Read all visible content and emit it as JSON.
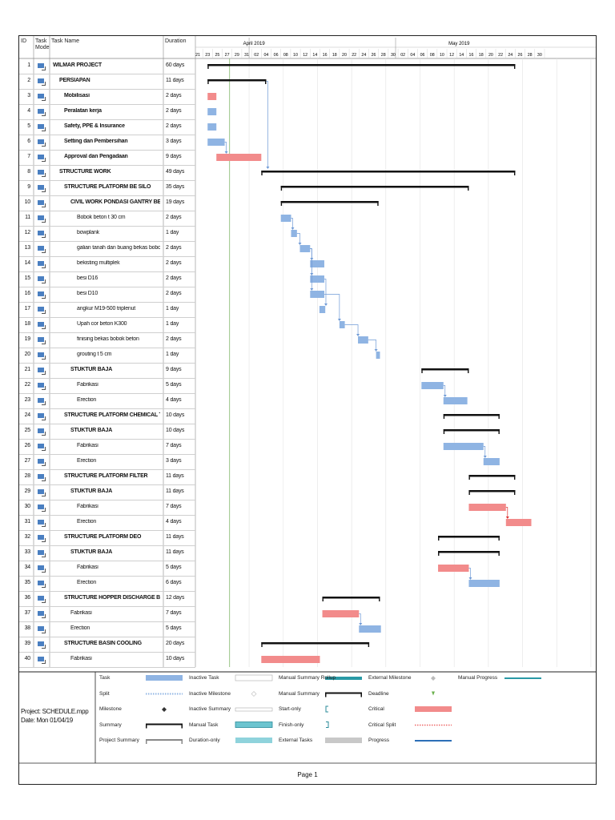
{
  "headers": {
    "id": "ID",
    "mode": "Task Mode",
    "name": "Task Name",
    "duration": "Duration",
    "month_labels": [
      "April 2019",
      "May 2019"
    ],
    "day_ticks": [
      "21",
      "23",
      "25",
      "27",
      "29",
      "31",
      "02",
      "04",
      "06",
      "08",
      "10",
      "12",
      "14",
      "16",
      "18",
      "20",
      "22",
      "24",
      "26",
      "28",
      "30",
      "02",
      "04",
      "06",
      "08",
      "10",
      "12",
      "14",
      "16",
      "18",
      "20",
      "22",
      "24",
      "26",
      "28",
      "30"
    ]
  },
  "tasks": [
    {
      "id": "1",
      "name": "WILMAR PROJECT",
      "duration": "60 days",
      "level": 0
    },
    {
      "id": "2",
      "name": "PERSIAPAN",
      "duration": "11 days",
      "level": 1
    },
    {
      "id": "3",
      "name": "Mobilisasi",
      "duration": "2 days",
      "level": 2
    },
    {
      "id": "4",
      "name": "Peralatan kerja",
      "duration": "2 days",
      "level": 2
    },
    {
      "id": "5",
      "name": "Safety, PPE & Insurance",
      "duration": "2 days",
      "level": 2
    },
    {
      "id": "6",
      "name": "Setting dan Pembersihan",
      "duration": "3 days",
      "level": 2
    },
    {
      "id": "7",
      "name": "Approval dan Pengadaan",
      "duration": "9 days",
      "level": 2
    },
    {
      "id": "8",
      "name": "STRUCTURE WORK",
      "duration": "49 days",
      "level": 1
    },
    {
      "id": "9",
      "name": "STRUCTURE PLATFORM BE SILO",
      "duration": "35 days",
      "level": 2
    },
    {
      "id": "10",
      "name": "CIVIL WORK PONDASI GANTRY BE SILO",
      "duration": "19 days",
      "level": 3
    },
    {
      "id": "11",
      "name": "Bobok beton t 30 cm",
      "duration": "2 days",
      "level": 4
    },
    {
      "id": "12",
      "name": "bowplank",
      "duration": "1 day",
      "level": 4
    },
    {
      "id": "13",
      "name": "galian tanah dan buang bekas bobok",
      "duration": "2 days",
      "level": 4
    },
    {
      "id": "14",
      "name": "bekisting multiplek",
      "duration": "2 days",
      "level": 4
    },
    {
      "id": "15",
      "name": "besi D16",
      "duration": "2 days",
      "level": 4
    },
    {
      "id": "16",
      "name": "besi D10",
      "duration": "2 days",
      "level": 4
    },
    {
      "id": "17",
      "name": "angkur M19-500 triplenut",
      "duration": "1 day",
      "level": 4
    },
    {
      "id": "18",
      "name": "Upah cor beton K300",
      "duration": "1 day",
      "level": 4
    },
    {
      "id": "19",
      "name": "finising bekas bobok beton",
      "duration": "2 days",
      "level": 4
    },
    {
      "id": "20",
      "name": "grouting t 5 cm",
      "duration": "1 day",
      "level": 4
    },
    {
      "id": "21",
      "name": "STUKTUR BAJA",
      "duration": "9 days",
      "level": 3
    },
    {
      "id": "22",
      "name": "Fabrikasi",
      "duration": "5 days",
      "level": 4
    },
    {
      "id": "23",
      "name": "Erection",
      "duration": "4 days",
      "level": 4
    },
    {
      "id": "24",
      "name": "STRUCTURE PLATFORM CHEMICAL TANK",
      "duration": "10 days",
      "level": 2
    },
    {
      "id": "25",
      "name": "STUKTUR BAJA",
      "duration": "10 days",
      "level": 3
    },
    {
      "id": "26",
      "name": "Fabrikasi",
      "duration": "7 days",
      "level": 4
    },
    {
      "id": "27",
      "name": "Erection",
      "duration": "3 days",
      "level": 4
    },
    {
      "id": "28",
      "name": "STRUCTURE PLATFORM FILTER",
      "duration": "11 days",
      "level": 2
    },
    {
      "id": "29",
      "name": "STUKTUR BAJA",
      "duration": "11 days",
      "level": 3
    },
    {
      "id": "30",
      "name": "Fabrikasi",
      "duration": "7 days",
      "level": 4
    },
    {
      "id": "31",
      "name": "Erection",
      "duration": "4 days",
      "level": 4
    },
    {
      "id": "32",
      "name": "STRUCTURE PLATFORM DEO",
      "duration": "11 days",
      "level": 2
    },
    {
      "id": "33",
      "name": "STUKTUR BAJA",
      "duration": "11 days",
      "level": 3
    },
    {
      "id": "34",
      "name": "Fabrikasi",
      "duration": "5 days",
      "level": 4
    },
    {
      "id": "35",
      "name": "Erection",
      "duration": "6 days",
      "level": 4
    },
    {
      "id": "36",
      "name": "STRUCTURE HOPPER DISCHARGE BE",
      "duration": "12 days",
      "level": 2
    },
    {
      "id": "37",
      "name": "Fabrikasi",
      "duration": "7 days",
      "level": 3
    },
    {
      "id": "38",
      "name": "Erection",
      "duration": "5 days",
      "level": 3
    },
    {
      "id": "39",
      "name": "STRUCTURE BASIN COOLING",
      "duration": "20 days",
      "level": 2
    },
    {
      "id": "40",
      "name": "Fabrikasi",
      "duration": "10 days",
      "level": 3
    }
  ],
  "chart_data": {
    "type": "gantt",
    "title": "WILMAR PROJECT",
    "x_unit": "days since Thu 21 Mar 2019 (start of timescale)",
    "xlim": [
      0,
      82
    ],
    "status_date_day": 7,
    "bars": [
      {
        "row": 1,
        "kind": "summary",
        "start": 2.5,
        "end": 65.5
      },
      {
        "row": 2,
        "kind": "summary",
        "start": 2.5,
        "end": 14.5
      },
      {
        "row": 3,
        "kind": "critical",
        "start": 2.5,
        "end": 4.3
      },
      {
        "row": 4,
        "kind": "task",
        "start": 2.5,
        "end": 4.3
      },
      {
        "row": 5,
        "kind": "task",
        "start": 2.5,
        "end": 4.3
      },
      {
        "row": 6,
        "kind": "task",
        "start": 2.5,
        "end": 6.0
      },
      {
        "row": 7,
        "kind": "critical",
        "start": 4.3,
        "end": 13.5
      },
      {
        "row": 8,
        "kind": "summary",
        "start": 13.5,
        "end": 65.5
      },
      {
        "row": 9,
        "kind": "summary",
        "start": 17.5,
        "end": 56.0
      },
      {
        "row": 10,
        "kind": "summary",
        "start": 17.5,
        "end": 37.5
      },
      {
        "row": 11,
        "kind": "task",
        "start": 17.5,
        "end": 19.6
      },
      {
        "row": 12,
        "kind": "task",
        "start": 19.6,
        "end": 20.8
      },
      {
        "row": 13,
        "kind": "task",
        "start": 21.4,
        "end": 23.5
      },
      {
        "row": 14,
        "kind": "task",
        "start": 23.5,
        "end": 26.4
      },
      {
        "row": 15,
        "kind": "task",
        "start": 23.5,
        "end": 26.4
      },
      {
        "row": 16,
        "kind": "task",
        "start": 23.5,
        "end": 26.4
      },
      {
        "row": 17,
        "kind": "task",
        "start": 25.4,
        "end": 26.6
      },
      {
        "row": 18,
        "kind": "task",
        "start": 29.5,
        "end": 30.6
      },
      {
        "row": 19,
        "kind": "task",
        "start": 33.3,
        "end": 35.4
      },
      {
        "row": 20,
        "kind": "task",
        "start": 37.0,
        "end": 37.8
      },
      {
        "row": 21,
        "kind": "summary",
        "start": 46.3,
        "end": 56.0
      },
      {
        "row": 22,
        "kind": "task",
        "start": 46.3,
        "end": 50.8
      },
      {
        "row": 23,
        "kind": "task",
        "start": 50.8,
        "end": 55.7
      },
      {
        "row": 24,
        "kind": "summary",
        "start": 50.8,
        "end": 62.3
      },
      {
        "row": 25,
        "kind": "summary",
        "start": 50.8,
        "end": 62.3
      },
      {
        "row": 26,
        "kind": "task",
        "start": 50.8,
        "end": 59.0
      },
      {
        "row": 27,
        "kind": "task",
        "start": 59.0,
        "end": 62.3
      },
      {
        "row": 28,
        "kind": "summary",
        "start": 56.0,
        "end": 65.5
      },
      {
        "row": 29,
        "kind": "summary",
        "start": 56.0,
        "end": 65.5
      },
      {
        "row": 30,
        "kind": "critical",
        "start": 56.0,
        "end": 63.6
      },
      {
        "row": 31,
        "kind": "critical",
        "start": 63.6,
        "end": 68.8
      },
      {
        "row": 32,
        "kind": "summary",
        "start": 49.7,
        "end": 62.3
      },
      {
        "row": 33,
        "kind": "summary",
        "start": 49.7,
        "end": 62.3
      },
      {
        "row": 34,
        "kind": "critical",
        "start": 49.7,
        "end": 56.0
      },
      {
        "row": 35,
        "kind": "task",
        "start": 56.0,
        "end": 62.3
      },
      {
        "row": 36,
        "kind": "summary",
        "start": 26.0,
        "end": 37.8
      },
      {
        "row": 37,
        "kind": "critical",
        "start": 26.0,
        "end": 33.5
      },
      {
        "row": 38,
        "kind": "task",
        "start": 33.5,
        "end": 38.0
      },
      {
        "row": 39,
        "kind": "summary",
        "start": 13.5,
        "end": 35.6
      },
      {
        "row": 40,
        "kind": "critical",
        "start": 13.5,
        "end": 25.5
      }
    ]
  },
  "legend": [
    {
      "label": "Task",
      "symbol": "task"
    },
    {
      "label": "Split",
      "symbol": "split"
    },
    {
      "label": "Milestone",
      "symbol": "milestone"
    },
    {
      "label": "Summary",
      "symbol": "summary"
    },
    {
      "label": "Project Summary",
      "symbol": "project-summary"
    },
    {
      "label": "Inactive Task",
      "symbol": "inactive-task"
    },
    {
      "label": "Inactive Milestone",
      "symbol": "inactive-milestone"
    },
    {
      "label": "Inactive Summary",
      "symbol": "inactive-summary"
    },
    {
      "label": "Manual Task",
      "symbol": "manual-task"
    },
    {
      "label": "Duration-only",
      "symbol": "duration-only"
    },
    {
      "label": "Manual Summary Rollup",
      "symbol": "manual-summary-rollup"
    },
    {
      "label": "Manual Summary",
      "symbol": "manual-summary"
    },
    {
      "label": "Start-only",
      "symbol": "start-only"
    },
    {
      "label": "Finish-only",
      "symbol": "finish-only"
    },
    {
      "label": "External Tasks",
      "symbol": "external-tasks"
    },
    {
      "label": "External Milestone",
      "symbol": "external-milestone"
    },
    {
      "label": "Deadline",
      "symbol": "deadline"
    },
    {
      "label": "Critical",
      "symbol": "critical"
    },
    {
      "label": "Critical Split",
      "symbol": "critical-split"
    },
    {
      "label": "Progress",
      "symbol": "progress"
    },
    {
      "label": "Manual Progress",
      "symbol": "manual-progress"
    }
  ],
  "project": {
    "line1": "Project: SCHEDULE.mpp",
    "line2": "Date: Mon 01/04/19"
  },
  "footer": {
    "page": "Page 1"
  },
  "colors": {
    "task": "#8fb4e3",
    "critical": "#f28b8b",
    "summary": "#111111",
    "link": "#6f9ad6",
    "status": "#8fbf7a"
  }
}
